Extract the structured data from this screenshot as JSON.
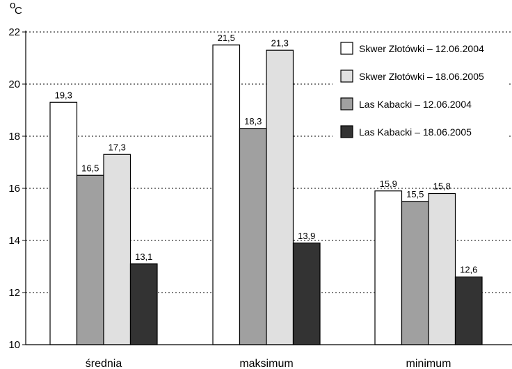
{
  "chart_data": {
    "type": "bar",
    "unit": "C",
    "unit_prefix": "o",
    "categories": [
      "średnia",
      "maksimum",
      "minimum"
    ],
    "series": [
      {
        "name": "Skwer Złotówki – 12.06.2004",
        "values": [
          19.3,
          21.5,
          15.9
        ],
        "labels": [
          "19,3",
          "21,5",
          "15,9"
        ],
        "color": "#ffffff"
      },
      {
        "name": "Skwer Złotówki – 18.06.2005",
        "values": [
          17.3,
          21.3,
          15.8
        ],
        "labels": [
          "17,3",
          "21,3",
          "15,8"
        ],
        "color": "#e0e0e0"
      },
      {
        "name": "Las Kabacki – 12.06.2004",
        "values": [
          16.5,
          18.3,
          15.5
        ],
        "labels": [
          "16,5",
          "18,3",
          "15,5"
        ],
        "color": "#a0a0a0"
      },
      {
        "name": "Las Kabacki – 18.06.2005",
        "values": [
          13.1,
          13.9,
          12.6
        ],
        "labels": [
          "13,1",
          "13,9",
          "12,6"
        ],
        "color": "#333333"
      }
    ],
    "bar_order": [
      0,
      2,
      1,
      3
    ],
    "ylim": [
      10,
      22
    ],
    "yticks": [
      "10",
      "12",
      "14",
      "16",
      "18",
      "20",
      "22"
    ],
    "grid": "dotted horizontal",
    "legend": "top-right"
  }
}
